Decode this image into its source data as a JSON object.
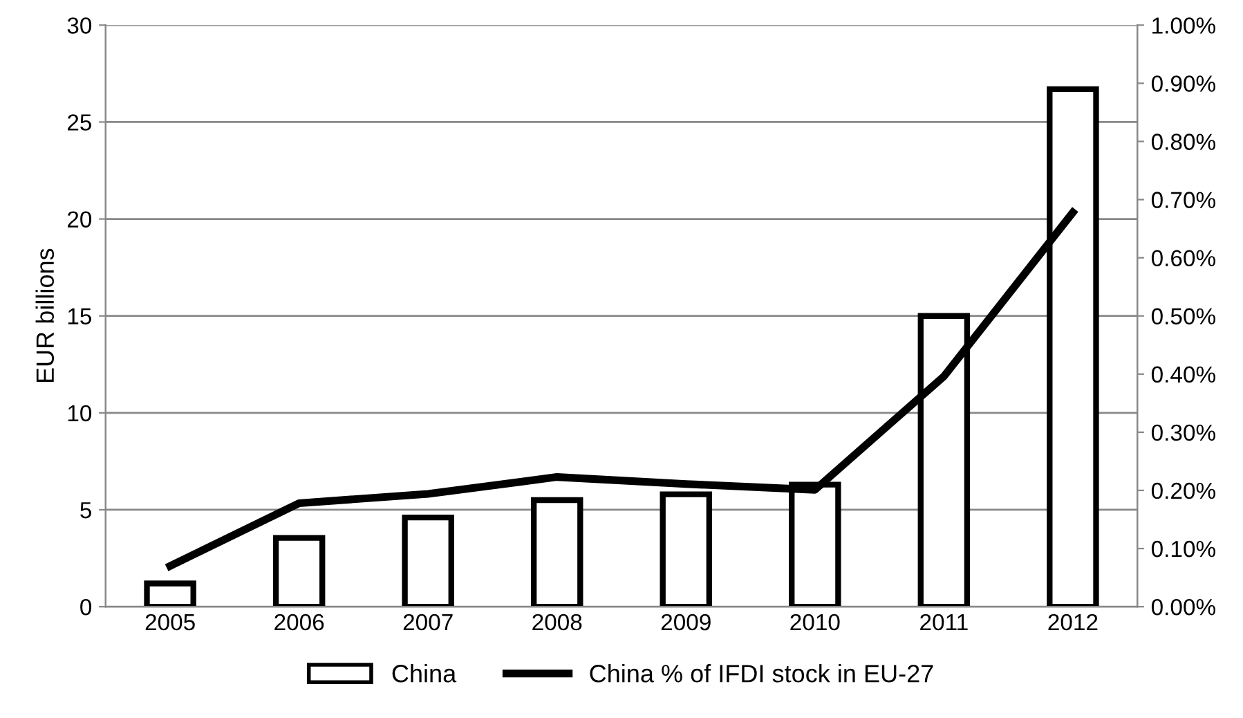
{
  "chart_data": {
    "type": "bar",
    "ylabel": "EUR billions",
    "categories": [
      "2005",
      "2006",
      "2007",
      "2008",
      "2009",
      "2010",
      "2011",
      "2012"
    ],
    "series": [
      {
        "name": "China",
        "color": "#ffffff",
        "values": [
          1.2,
          3.55,
          4.6,
          5.5,
          5.8,
          6.3,
          15.0,
          26.7
        ]
      },
      {
        "name": "China % of IFDI stock in EU-27",
        "type": "line",
        "axis": "y2",
        "color": "#000000",
        "values": [
          0.07,
          0.178,
          0.194,
          0.223,
          0.211,
          0.201,
          0.396,
          0.678
        ]
      }
    ],
    "ylim": [
      0,
      30
    ],
    "yticks": [
      0,
      5,
      10,
      15,
      20,
      25,
      30
    ],
    "y2lim": [
      0,
      1
    ],
    "y2ticks": [
      {
        "value": 0,
        "label": "0.00%"
      },
      {
        "value": 0.1,
        "label": "0.10%"
      },
      {
        "value": 0.2,
        "label": "0.20%"
      },
      {
        "value": 0.3,
        "label": "0.30%"
      },
      {
        "value": 0.4,
        "label": "0.40%"
      },
      {
        "value": 0.5,
        "label": "0.50%"
      },
      {
        "value": 0.6,
        "label": "0.60%"
      },
      {
        "value": 0.7,
        "label": "0.70%"
      },
      {
        "value": 0.8,
        "label": "0.80%"
      },
      {
        "value": 0.9,
        "label": "0.90%"
      },
      {
        "value": 1,
        "label": "1.00%"
      }
    ],
    "grid": "y",
    "legend": "bottom",
    "marker": "none",
    "line_style": "solid"
  }
}
